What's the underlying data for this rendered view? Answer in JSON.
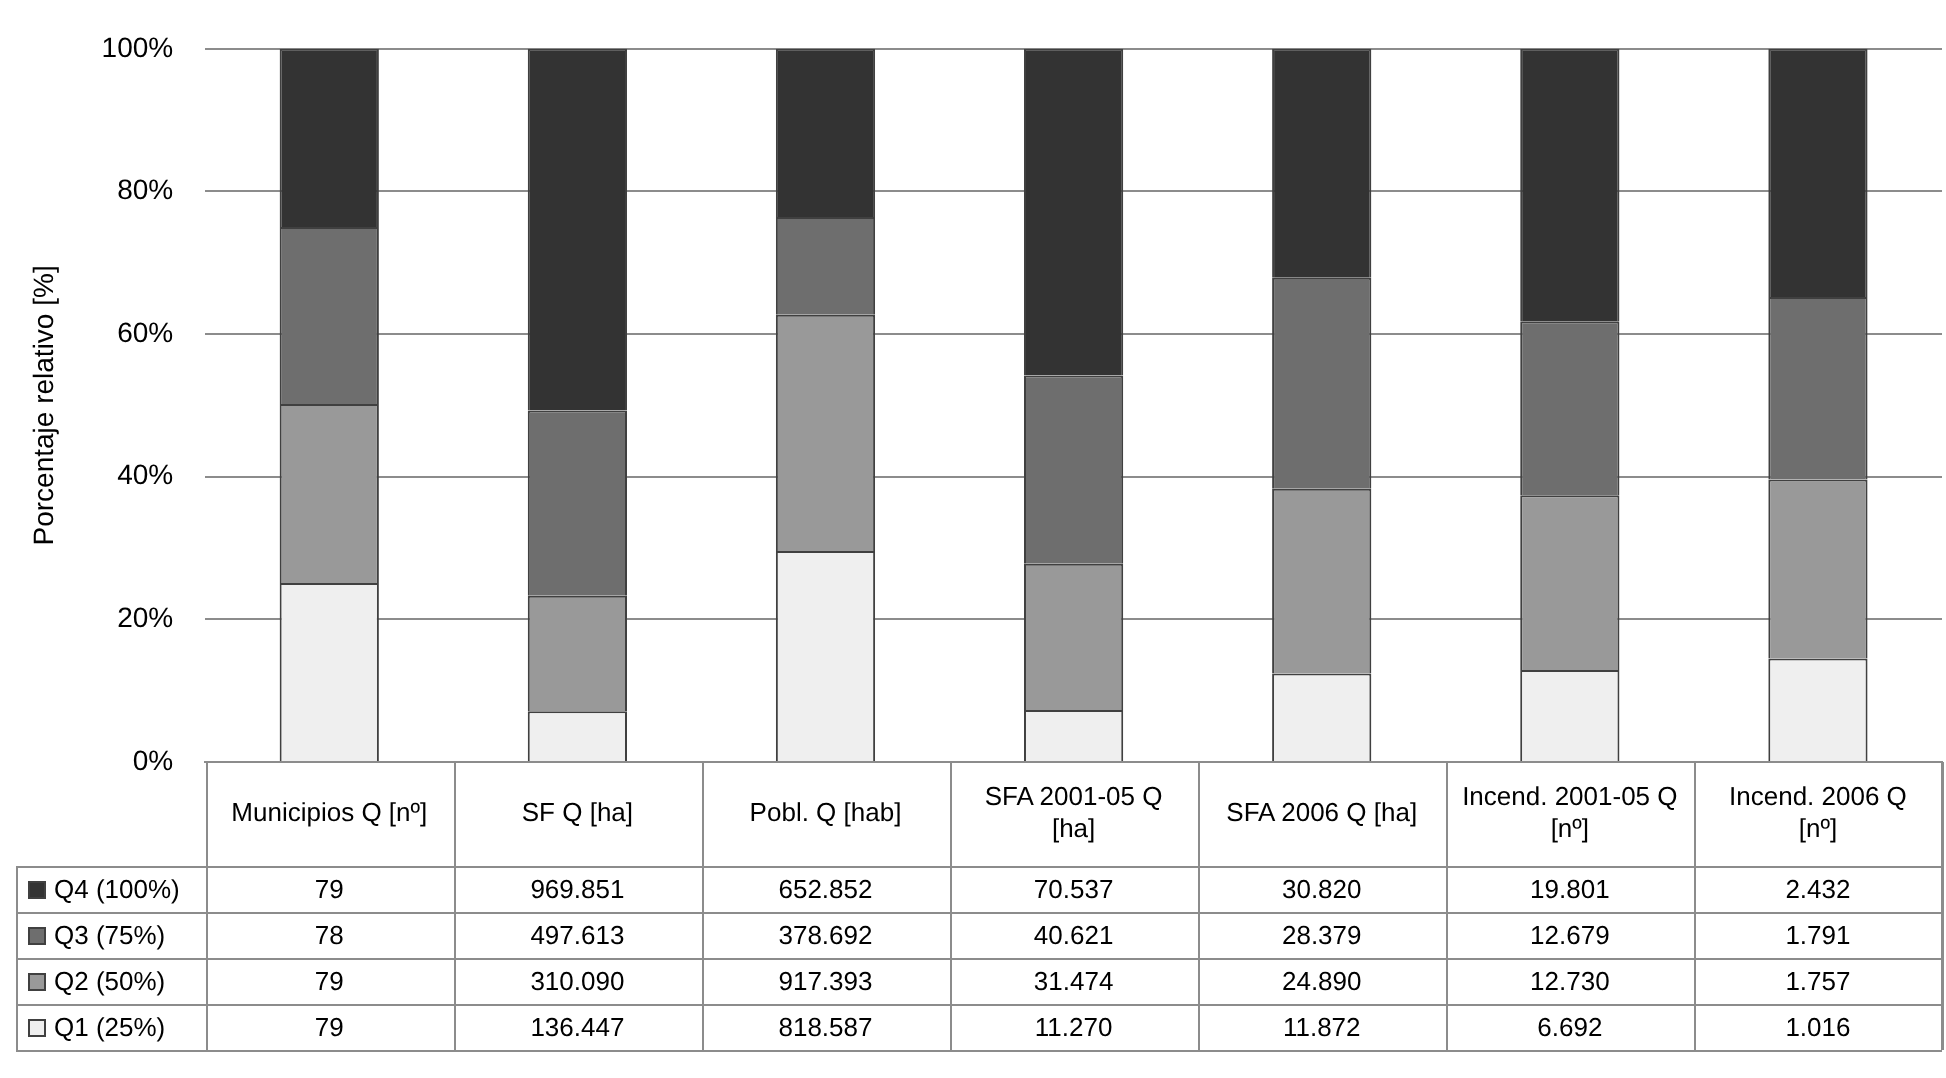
{
  "chart_data": {
    "type": "bar",
    "stacked": true,
    "ylabel": "Porcentaje relativo [%]",
    "categories": [
      "Municipios Q [nº]",
      "SF Q [ha]",
      "Pobl. Q [hab]",
      "SFA 2001-05 Q [ha]",
      "SFA 2006 Q [ha]",
      "Incend. 2001-05 Q [nº]",
      "Incend. 2006 Q [nº]"
    ],
    "series": [
      {
        "name": "Q1 (25%)",
        "color": "#efefef",
        "values": [
          25.1,
          7.1,
          29.6,
          7.3,
          12.4,
          12.9,
          14.5
        ]
      },
      {
        "name": "Q2 (50%)",
        "color": "#999999",
        "values": [
          25.1,
          16.2,
          33.1,
          20.5,
          25.9,
          24.5,
          25.1
        ]
      },
      {
        "name": "Q3 (75%)",
        "color": "#6e6e6e",
        "values": [
          24.8,
          26.0,
          13.7,
          26.4,
          29.6,
          24.4,
          25.6
        ]
      },
      {
        "name": "Q4 (100%)",
        "color": "#333333",
        "values": [
          25.0,
          50.7,
          23.6,
          45.8,
          32.1,
          38.2,
          34.8
        ]
      }
    ],
    "annotations": [
      "79",
      "969.851",
      "652.852",
      "70.537",
      "30.820",
      "19.801",
      "2.432",
      "78",
      "497.613",
      "378.692",
      "40.621",
      "28.379",
      "12.679",
      "1.791",
      "79",
      "310.090",
      "917.393",
      "31.474",
      "24.890",
      "12.730",
      "1.757",
      "79",
      "136.447",
      "818.587",
      "11.270",
      "11.872",
      "6.692",
      "1.016"
    ],
    "ylim": [
      0,
      100
    ],
    "yticks": [
      {
        "value": 0,
        "label": "0%"
      },
      {
        "value": 20,
        "label": "20%"
      },
      {
        "value": 40,
        "label": "40%"
      },
      {
        "value": 60,
        "label": "60%"
      },
      {
        "value": 80,
        "label": "80%"
      },
      {
        "value": 100,
        "label": "100%"
      }
    ],
    "grid": "y",
    "tick_labels": "y",
    "legend": "bottom left"
  }
}
